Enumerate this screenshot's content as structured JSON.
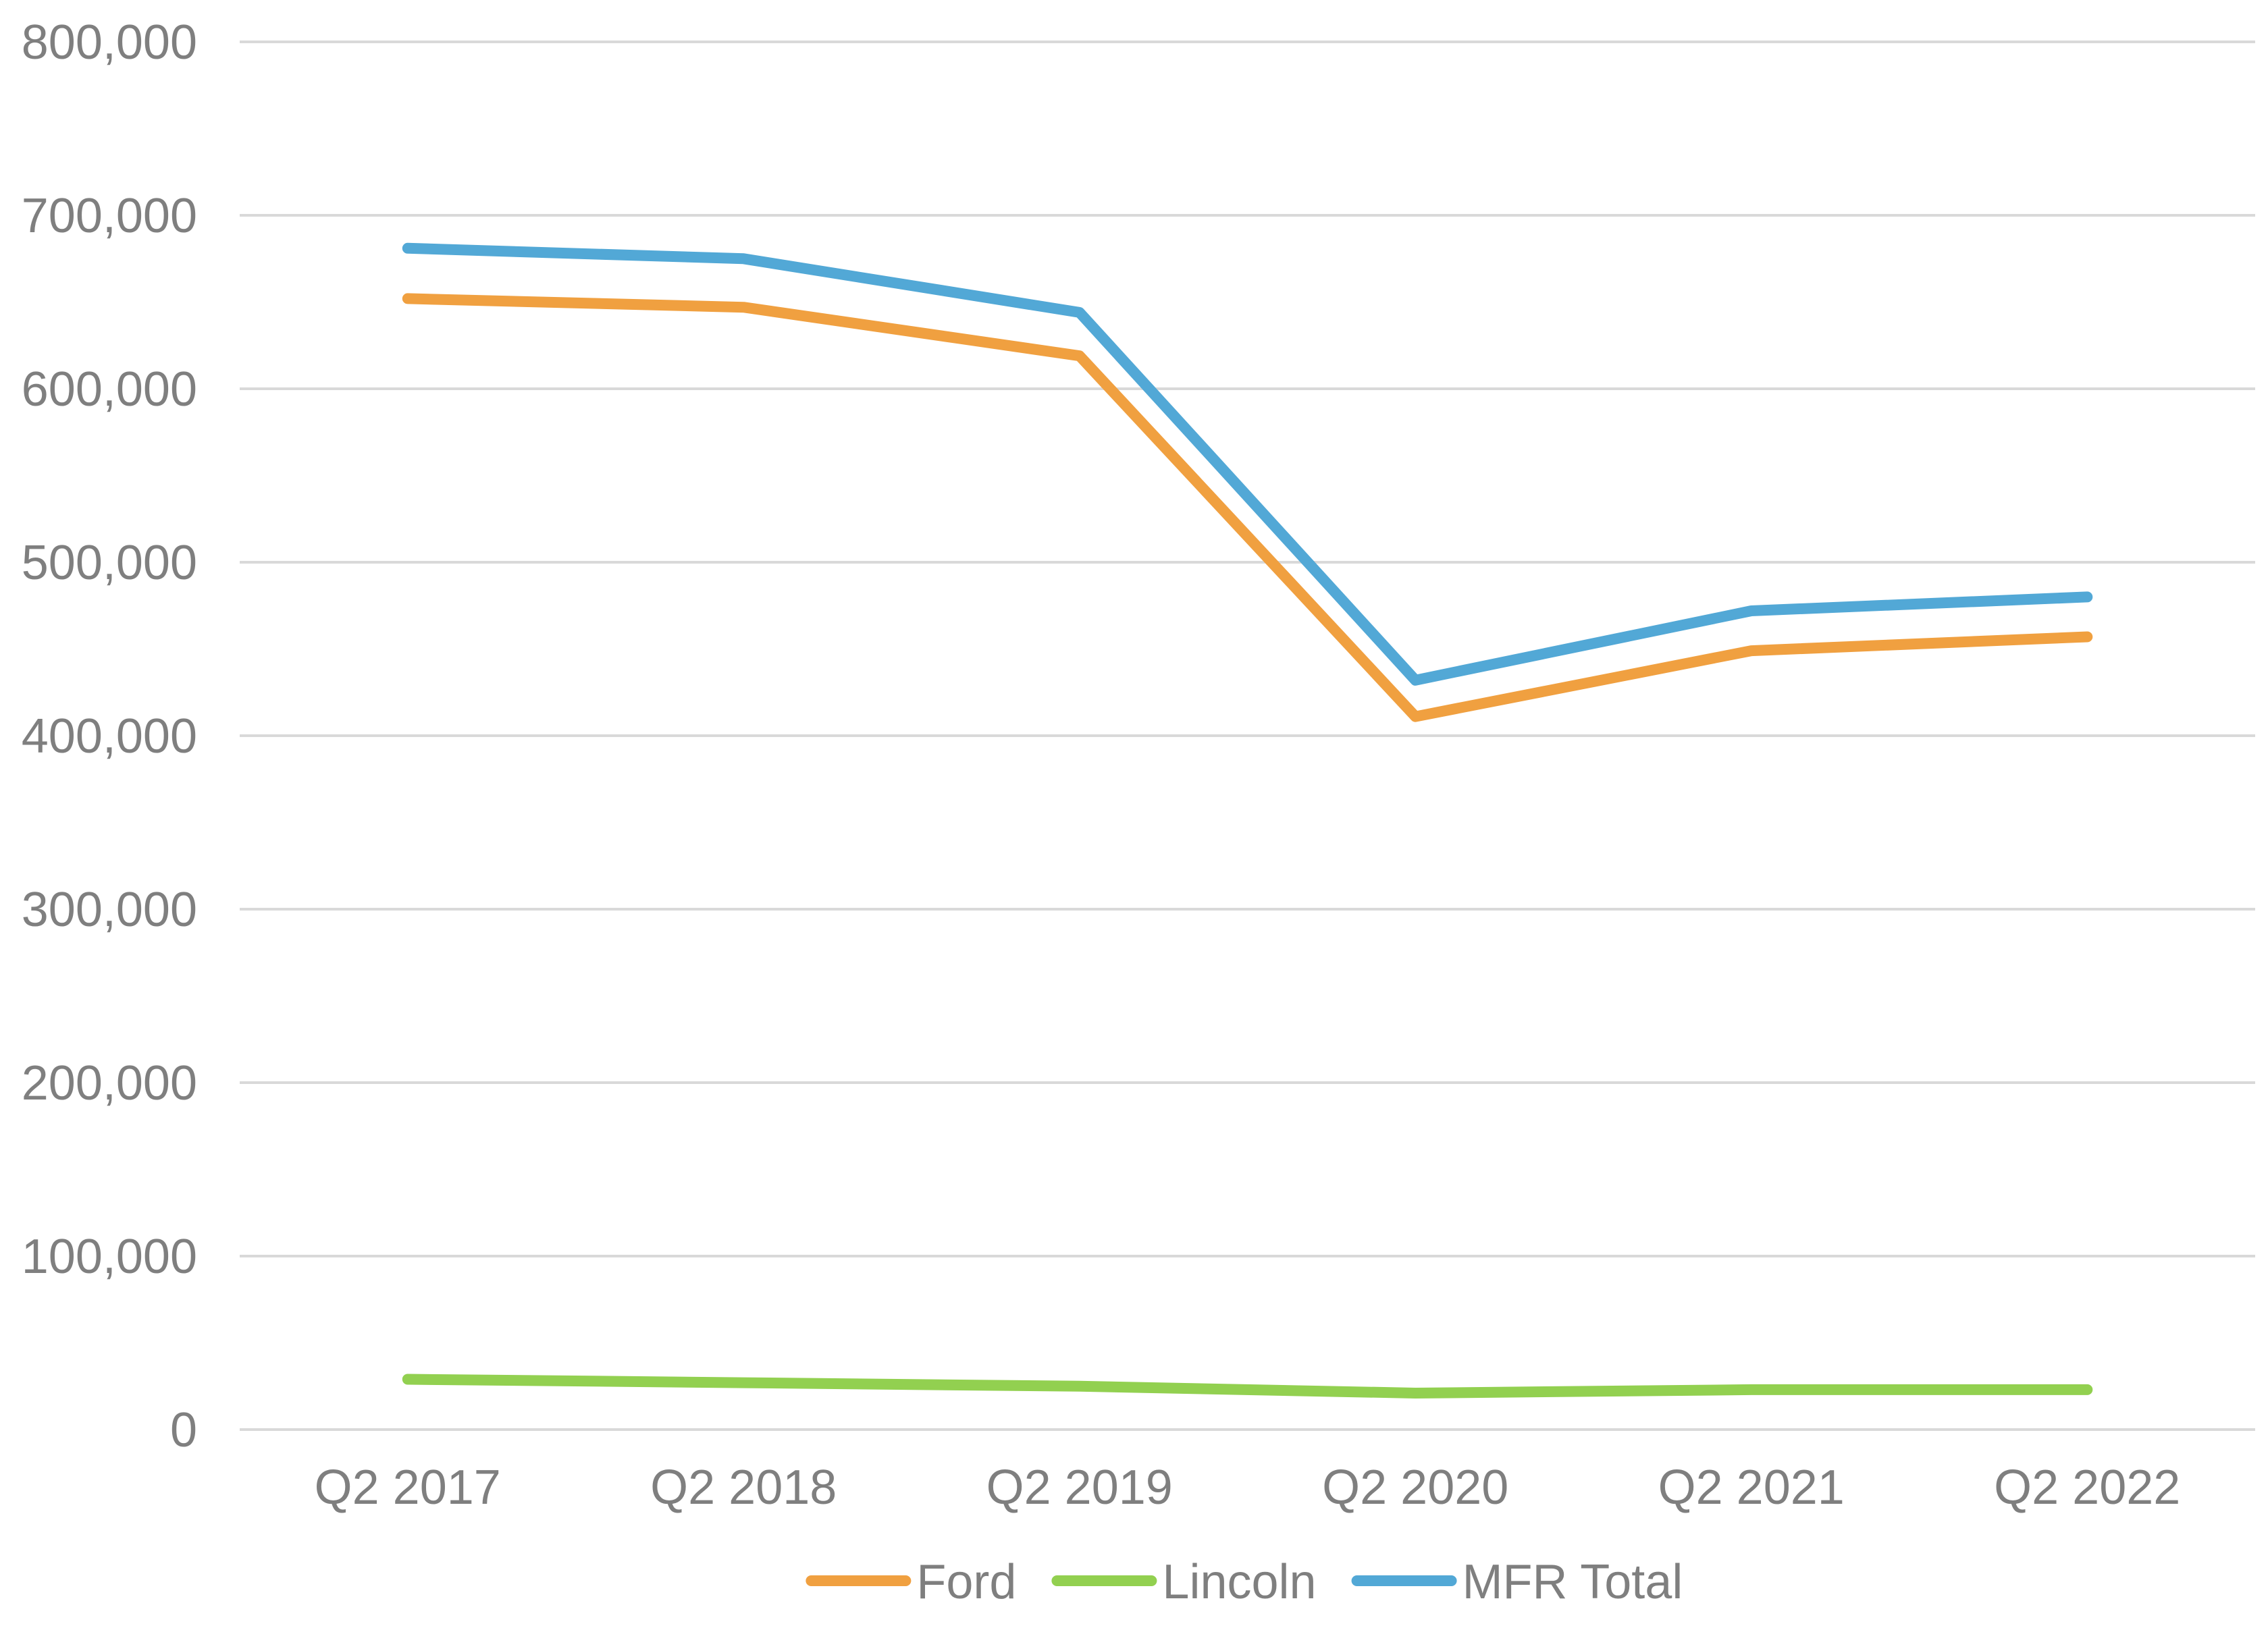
{
  "chart_data": {
    "type": "line",
    "title": "",
    "xlabel": "",
    "ylabel": "",
    "categories": [
      "Q2 2017",
      "Q2 2018",
      "Q2 2019",
      "Q2 2020",
      "Q2 2021",
      "Q2 2022"
    ],
    "ylim": [
      0,
      800000
    ],
    "yticks": [
      0,
      100000,
      200000,
      300000,
      400000,
      500000,
      600000,
      700000,
      800000
    ],
    "ytick_labels": [
      "0",
      "100,000",
      "200,000",
      "300,000",
      "400,000",
      "500,000",
      "600,000",
      "700,000",
      "800,000"
    ],
    "grid": true,
    "legend_position": "bottom",
    "series": [
      {
        "name": "Ford",
        "color": "#F0A040",
        "values": [
          652000,
          647000,
          619000,
          411000,
          449000,
          457000
        ]
      },
      {
        "name": "Lincoln",
        "color": "#92D050",
        "values": [
          29000,
          27000,
          25000,
          21000,
          23000,
          23000
        ]
      },
      {
        "name": "MFR Total",
        "color": "#52A8D6",
        "values": [
          681000,
          675000,
          644000,
          432000,
          472000,
          480000
        ]
      }
    ]
  }
}
